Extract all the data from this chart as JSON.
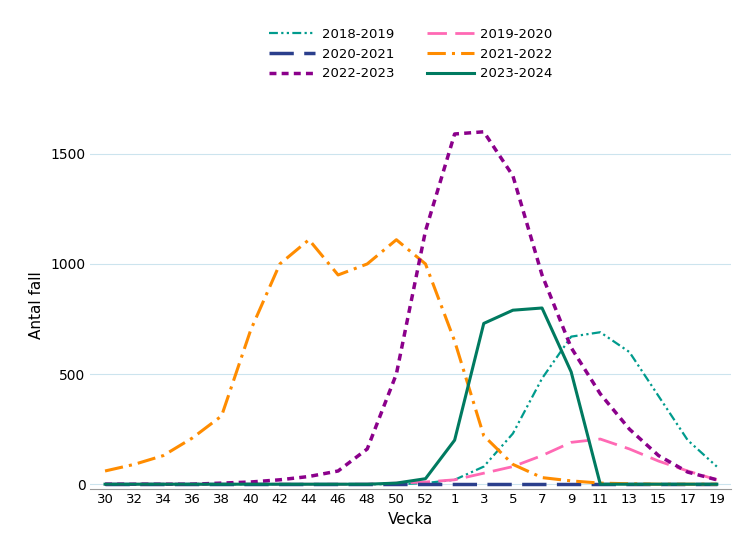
{
  "title": "",
  "ylabel": "Antal fall",
  "xlabel": "Vecka",
  "yticks": [
    0,
    500,
    1000,
    1500
  ],
  "xtick_labels": [
    "30",
    "32",
    "34",
    "36",
    "38",
    "40",
    "42",
    "44",
    "46",
    "48",
    "50",
    "52",
    "1",
    "3",
    "5",
    "7",
    "9",
    "11",
    "13",
    "15",
    "17",
    "19"
  ],
  "series": [
    {
      "label": "2018-2019",
      "color": "#009B8D",
      "linestyle": "dashdot",
      "linewidth": 1.6,
      "values": [
        0,
        0,
        0,
        0,
        0,
        0,
        0,
        0,
        0,
        0,
        0,
        5,
        20,
        80,
        230,
        480,
        670,
        690,
        600,
        400,
        200,
        80
      ]
    },
    {
      "label": "2019-2020",
      "color": "#FF69B4",
      "linestyle": "dashed",
      "linewidth": 2.0,
      "values": [
        0,
        0,
        0,
        0,
        0,
        0,
        0,
        0,
        0,
        0,
        5,
        10,
        20,
        50,
        80,
        130,
        190,
        205,
        160,
        105,
        60,
        20
      ]
    },
    {
      "label": "2020-2021",
      "color": "#2B3F8C",
      "linestyle": "dashed",
      "linewidth": 2.5,
      "values": [
        0,
        0,
        0,
        0,
        0,
        0,
        0,
        0,
        0,
        0,
        0,
        0,
        0,
        0,
        0,
        0,
        0,
        0,
        0,
        0,
        0,
        0
      ]
    },
    {
      "label": "2021-2022",
      "color": "#FF8C00",
      "linestyle": "dashdot",
      "linewidth": 2.2,
      "values": [
        60,
        90,
        130,
        210,
        310,
        700,
        1000,
        1110,
        950,
        1000,
        1110,
        1000,
        650,
        220,
        90,
        30,
        15,
        5,
        2,
        0,
        0,
        0
      ]
    },
    {
      "label": "2022-2023",
      "color": "#8B008B",
      "linestyle": "dotted",
      "linewidth": 2.5,
      "values": [
        0,
        0,
        0,
        0,
        5,
        10,
        20,
        35,
        60,
        160,
        500,
        1150,
        1590,
        1600,
        1400,
        950,
        620,
        410,
        250,
        130,
        55,
        20
      ]
    },
    {
      "label": "2023-2024",
      "color": "#007A60",
      "linestyle": "solid",
      "linewidth": 2.2,
      "values": [
        0,
        0,
        0,
        0,
        0,
        0,
        0,
        0,
        0,
        0,
        5,
        25,
        200,
        730,
        790,
        800,
        510,
        0,
        0,
        0,
        0,
        0
      ]
    }
  ]
}
